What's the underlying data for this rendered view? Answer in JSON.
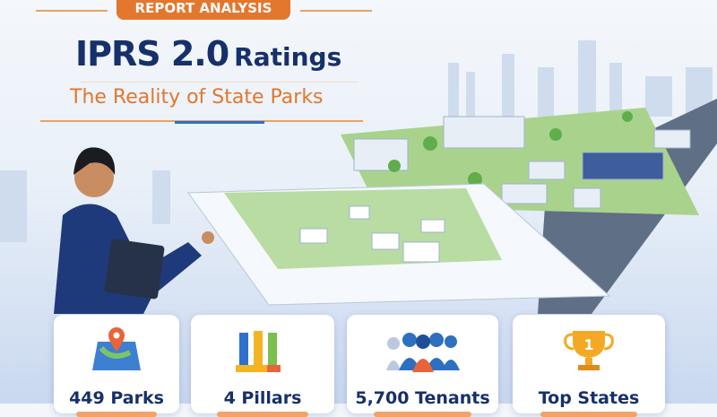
{
  "header": {
    "badge": "REPORT ANALYSIS",
    "title_main": "IPRS 2.0",
    "title_suffix": "Ratings",
    "subtitle": "The Reality of State Parks"
  },
  "cards": [
    {
      "label": "449 Parks",
      "icon": "map-pin-icon"
    },
    {
      "label": "4 Pillars",
      "icon": "pillars-icon"
    },
    {
      "label": "5,700 Tenants",
      "icon": "people-icon"
    },
    {
      "label": "Top States",
      "icon": "trophy-icon"
    }
  ],
  "colors": {
    "navy": "#16306b",
    "orange": "#e2772d",
    "sky": "#e9f0f8"
  }
}
